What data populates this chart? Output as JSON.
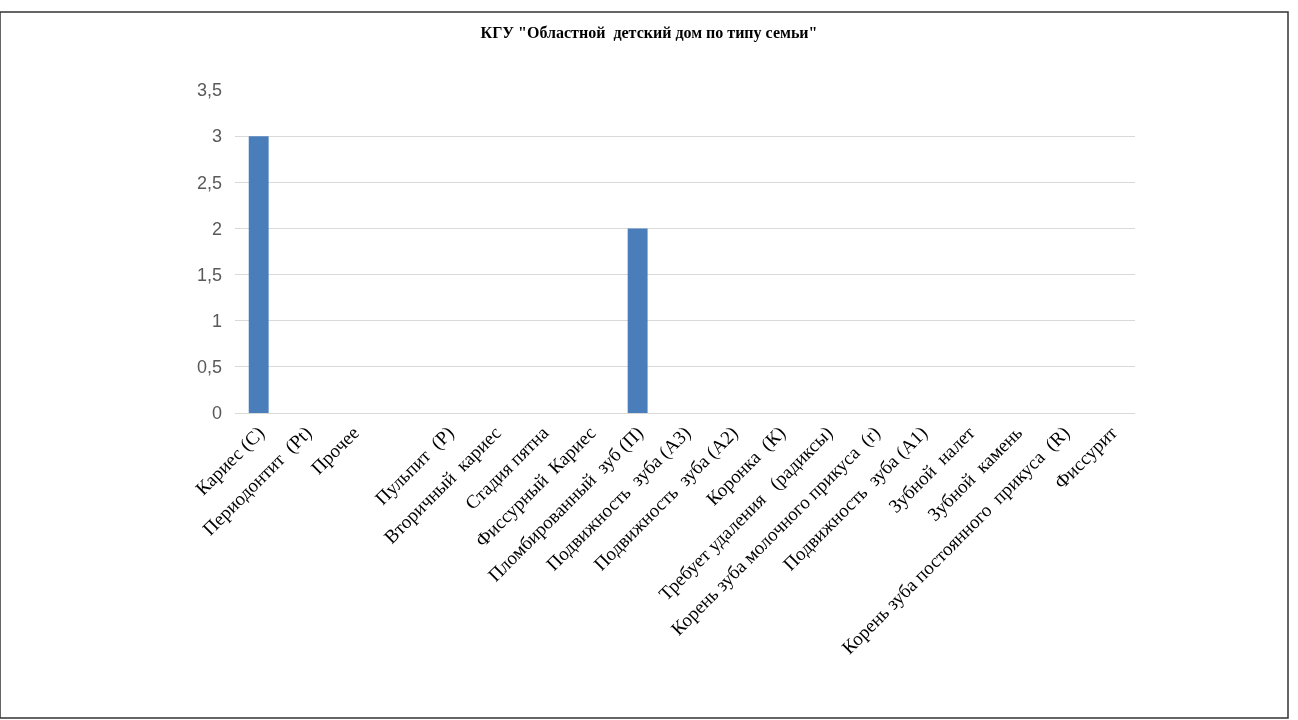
{
  "chart_data": {
    "type": "bar",
    "title": "КГУ \"Областной  детский дом по типу семьи\"",
    "categories": [
      "Кариес (С)",
      "Периодонтит  (Pt)",
      "Прочее",
      null,
      "Пульпит  (Р)",
      "Вторичный  кариес",
      "Стадия пятна",
      "Фиссурный  Кариес",
      "Пломбированный  зуб (П)",
      "Подвижность  зуба (А3)",
      "Подвижность  зуба (А2)",
      "Коронка  (К)",
      "Требует удаления   (радиксы)",
      "Корень зуба молочного прикуса  (r)",
      "Подвижность  зуба (А1)",
      "Зубной  налет",
      "Зубной  камень",
      "Корень зуба постоянного  прикуса  (R)",
      "Фиссурит"
    ],
    "values": [
      3,
      0,
      0,
      0,
      0,
      0,
      0,
      0,
      2,
      0,
      0,
      0,
      0,
      0,
      0,
      0,
      0,
      0,
      0
    ],
    "color": "#4a7ebb",
    "ylim": [
      0,
      3.5
    ],
    "yticks": [
      {
        "value": 0,
        "label": "0"
      },
      {
        "value": 0.5,
        "label": "0,5"
      },
      {
        "value": 1,
        "label": "1"
      },
      {
        "value": 1.5,
        "label": "1,5"
      },
      {
        "value": 2,
        "label": "2"
      },
      {
        "value": 2.5,
        "label": "2,5"
      },
      {
        "value": 3,
        "label": "3"
      },
      {
        "value": 3.5,
        "label": "3,5"
      }
    ],
    "grid": "y"
  }
}
